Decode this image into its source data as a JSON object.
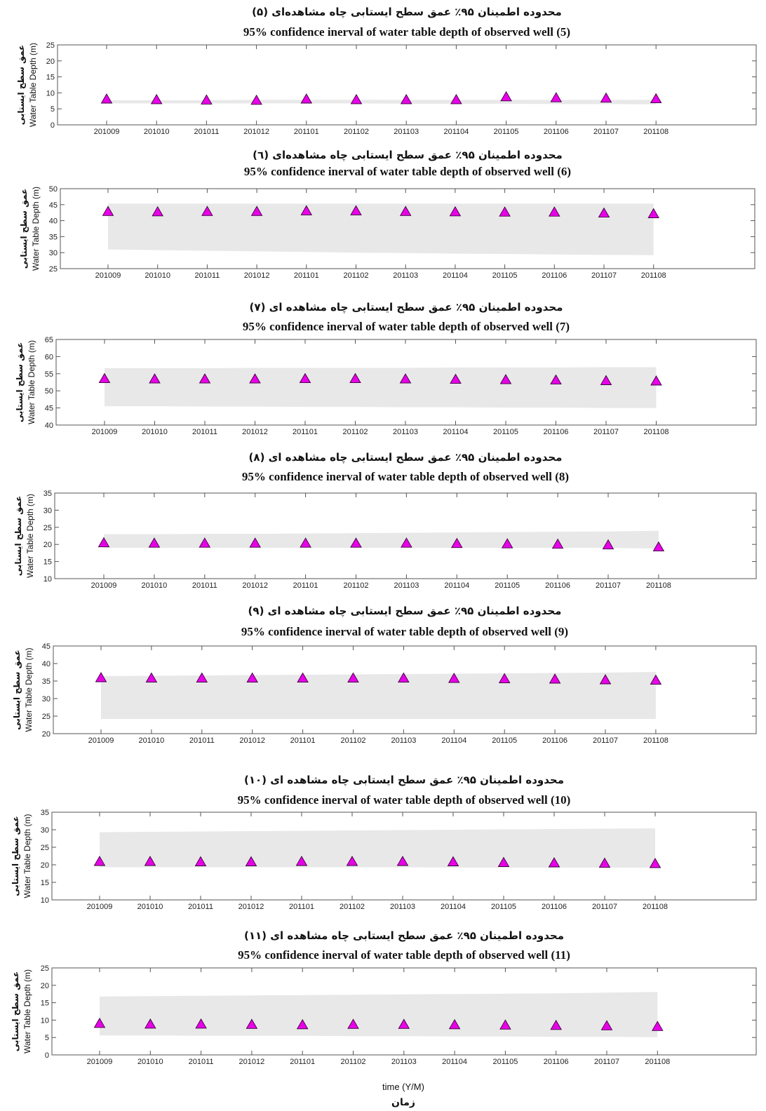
{
  "figure": {
    "xlabel_en": "time (Y/M)",
    "xlabel_fa": "زمان"
  },
  "colors": {
    "band": "#e8e8e8",
    "marker_fill": "#e800e8",
    "marker_stroke": "#3a003a",
    "axis": "#555555"
  },
  "chart_data": [
    {
      "type": "scatter",
      "title_fa": "محدوده اطمینان ۹۵٪ عمق سطح ایستابی چاه مشاهده‌ای (۵)",
      "title": "95% confidence inerval of water table depth of observed well (5)",
      "ylabel": "Water Table Depth (m)",
      "ylabel_fa": "عمق سطح ایستابی",
      "categories": [
        "201009",
        "201010",
        "201011",
        "201012",
        "201101",
        "201102",
        "201103",
        "201104",
        "201105",
        "201106",
        "201107",
        "201108"
      ],
      "ylim": [
        0,
        25
      ],
      "yticks": [
        0,
        5,
        10,
        15,
        20,
        25
      ],
      "band_upper": [
        7.7,
        7.7,
        7.7,
        7.8,
        7.8,
        7.8,
        7.8,
        7.8,
        7.8,
        7.8,
        7.8,
        7.8
      ],
      "band_lower": [
        6.7,
        6.7,
        6.7,
        6.7,
        6.7,
        6.7,
        6.6,
        6.6,
        6.6,
        6.5,
        6.5,
        6.4
      ],
      "values": [
        8.0,
        7.8,
        7.7,
        7.6,
        8.0,
        7.8,
        7.8,
        7.8,
        8.7,
        8.4,
        8.3,
        8.1
      ]
    },
    {
      "type": "scatter",
      "title_fa": "محدوده اطمینان ۹۵٪ عمق سطح ایستابی چاه مشاهده‌ای (٦)",
      "title": "95% confidence inerval of water table depth of observed well (6)",
      "ylabel": "Water Table Depth (m)",
      "ylabel_fa": "عمق سطح ایستابی",
      "categories": [
        "201009",
        "201010",
        "201011",
        "201012",
        "201101",
        "201102",
        "201103",
        "201104",
        "201105",
        "201106",
        "201107",
        "201108"
      ],
      "ylim": [
        25,
        50
      ],
      "yticks": [
        25,
        30,
        35,
        40,
        45,
        50
      ],
      "band_upper": [
        45.3,
        45.3,
        45.3,
        45.3,
        45.3,
        45.3,
        45.3,
        45.3,
        45.3,
        45.3,
        45.3,
        45.3
      ],
      "band_lower": [
        31.0,
        30.8,
        30.6,
        30.4,
        30.2,
        30.0,
        29.9,
        29.7,
        29.6,
        29.4,
        29.3,
        29.2
      ],
      "values": [
        42.8,
        42.7,
        42.8,
        42.8,
        43.0,
        43.0,
        42.8,
        42.7,
        42.6,
        42.6,
        42.3,
        42.1
      ]
    },
    {
      "type": "scatter",
      "title_fa": "محدوده اطمینان ۹۵٪ عمق سطح ایستابی چاه مشاهده ای (۷)",
      "title": "95% confidence inerval of water table depth of observed well (7)",
      "ylabel": "Water Table Depth (m)",
      "ylabel_fa": "عمق سطح ایستابی",
      "categories": [
        "201009",
        "201010",
        "201011",
        "201012",
        "201101",
        "201102",
        "201103",
        "201104",
        "201105",
        "201106",
        "201107",
        "201108"
      ],
      "ylim": [
        40,
        65
      ],
      "yticks": [
        40,
        45,
        50,
        55,
        60,
        65
      ],
      "band_upper": [
        56.6,
        56.6,
        56.6,
        56.7,
        56.7,
        56.7,
        56.7,
        56.8,
        56.8,
        56.8,
        56.9,
        56.9
      ],
      "band_lower": [
        45.5,
        45.5,
        45.4,
        45.4,
        45.3,
        45.3,
        45.2,
        45.2,
        45.1,
        45.1,
        45.0,
        45.0
      ],
      "values": [
        53.5,
        53.4,
        53.4,
        53.4,
        53.5,
        53.5,
        53.4,
        53.3,
        53.2,
        53.1,
        52.9,
        52.8
      ]
    },
    {
      "type": "scatter",
      "title_fa": "محدوده اطمینان ۹۵٪ عمق سطح ایستابی چاه مشاهده ای (۸)",
      "title": "95% confidence inerval of water table depth of observed well (8)",
      "ylabel": "Water Table Depth (m)",
      "ylabel_fa": "عمق سطح ایستابی",
      "categories": [
        "201009",
        "201010",
        "201011",
        "201012",
        "201101",
        "201102",
        "201103",
        "201104",
        "201105",
        "201106",
        "201107",
        "201108"
      ],
      "ylim": [
        10,
        35
      ],
      "yticks": [
        10,
        15,
        20,
        25,
        30,
        35
      ],
      "band_upper": [
        23.0,
        23.0,
        23.1,
        23.1,
        23.2,
        23.3,
        23.4,
        23.5,
        23.6,
        23.7,
        23.8,
        24.0
      ],
      "band_lower": [
        19.0,
        19.0,
        19.0,
        19.0,
        19.0,
        19.0,
        19.0,
        19.0,
        19.0,
        19.0,
        19.0,
        18.8
      ],
      "values": [
        20.4,
        20.3,
        20.3,
        20.3,
        20.3,
        20.3,
        20.3,
        20.2,
        20.1,
        20.0,
        19.8,
        19.2
      ]
    },
    {
      "type": "scatter",
      "title_fa": "محدوده اطمینان ۹۵٪ عمق سطح ایستابی چاه مشاهده ای (۹)",
      "title": "95% confidence inerval of water table depth of observed well (9)",
      "ylabel": "Water Table Depth (m)",
      "ylabel_fa": "عمق سطح ایستابی",
      "categories": [
        "201009",
        "201010",
        "201011",
        "201012",
        "201101",
        "201102",
        "201103",
        "201104",
        "201105",
        "201106",
        "201107",
        "201108"
      ],
      "ylim": [
        20,
        45
      ],
      "yticks": [
        20,
        25,
        30,
        35,
        40,
        45
      ],
      "band_upper": [
        36.4,
        36.5,
        36.6,
        36.7,
        36.8,
        36.9,
        37.0,
        37.1,
        37.2,
        37.3,
        37.4,
        37.6
      ],
      "band_lower": [
        24.2,
        24.2,
        24.2,
        24.2,
        24.2,
        24.2,
        24.2,
        24.2,
        24.2,
        24.2,
        24.2,
        24.2
      ],
      "values": [
        35.9,
        35.8,
        35.8,
        35.8,
        35.8,
        35.8,
        35.8,
        35.7,
        35.6,
        35.5,
        35.3,
        35.2
      ]
    },
    {
      "type": "scatter",
      "title_fa": "محدوده اطمینان ۹۵٪ عمق سطح ایستابی چاه مشاهده ای (۱۰)",
      "title": "95% confidence inerval of water table depth of observed well (10)",
      "ylabel": "Water Table Depth (m)",
      "ylabel_fa": "عمق سطح ایستابی",
      "categories": [
        "201009",
        "201010",
        "201011",
        "201012",
        "201101",
        "201102",
        "201103",
        "201104",
        "201105",
        "201106",
        "201107",
        "201108"
      ],
      "ylim": [
        10,
        35
      ],
      "yticks": [
        10,
        15,
        20,
        25,
        30,
        35
      ],
      "band_upper": [
        29.3,
        29.4,
        29.5,
        29.6,
        29.7,
        29.8,
        29.9,
        30.0,
        30.1,
        30.2,
        30.3,
        30.4
      ],
      "band_lower": [
        19.3,
        19.3,
        19.3,
        19.3,
        19.3,
        19.3,
        19.3,
        19.2,
        19.2,
        19.2,
        19.2,
        19.2
      ],
      "values": [
        20.9,
        20.9,
        20.8,
        20.8,
        20.9,
        20.9,
        20.9,
        20.8,
        20.6,
        20.5,
        20.4,
        20.3
      ]
    },
    {
      "type": "scatter",
      "title_fa": "محدوده اطمینان ۹۵٪ عمق سطح ایستابی چاه مشاهده ای (۱۱)",
      "title": "95% confidence inerval of water table depth of observed well (11)",
      "ylabel": "Water Table Depth (m)",
      "ylabel_fa": "عمق سطح ایستابی",
      "categories": [
        "201009",
        "201010",
        "201011",
        "201012",
        "201101",
        "201102",
        "201103",
        "201104",
        "201105",
        "201106",
        "201107",
        "201108"
      ],
      "ylim": [
        0,
        25
      ],
      "yticks": [
        0,
        5,
        10,
        15,
        20,
        25
      ],
      "band_upper": [
        16.8,
        16.9,
        17.0,
        17.1,
        17.2,
        17.3,
        17.4,
        17.5,
        17.6,
        17.7,
        17.9,
        18.1
      ],
      "band_lower": [
        5.6,
        5.6,
        5.5,
        5.5,
        5.5,
        5.4,
        5.4,
        5.3,
        5.3,
        5.2,
        5.2,
        5.1
      ],
      "values": [
        9.0,
        8.8,
        8.8,
        8.7,
        8.6,
        8.7,
        8.7,
        8.6,
        8.5,
        8.4,
        8.3,
        8.1
      ]
    }
  ]
}
